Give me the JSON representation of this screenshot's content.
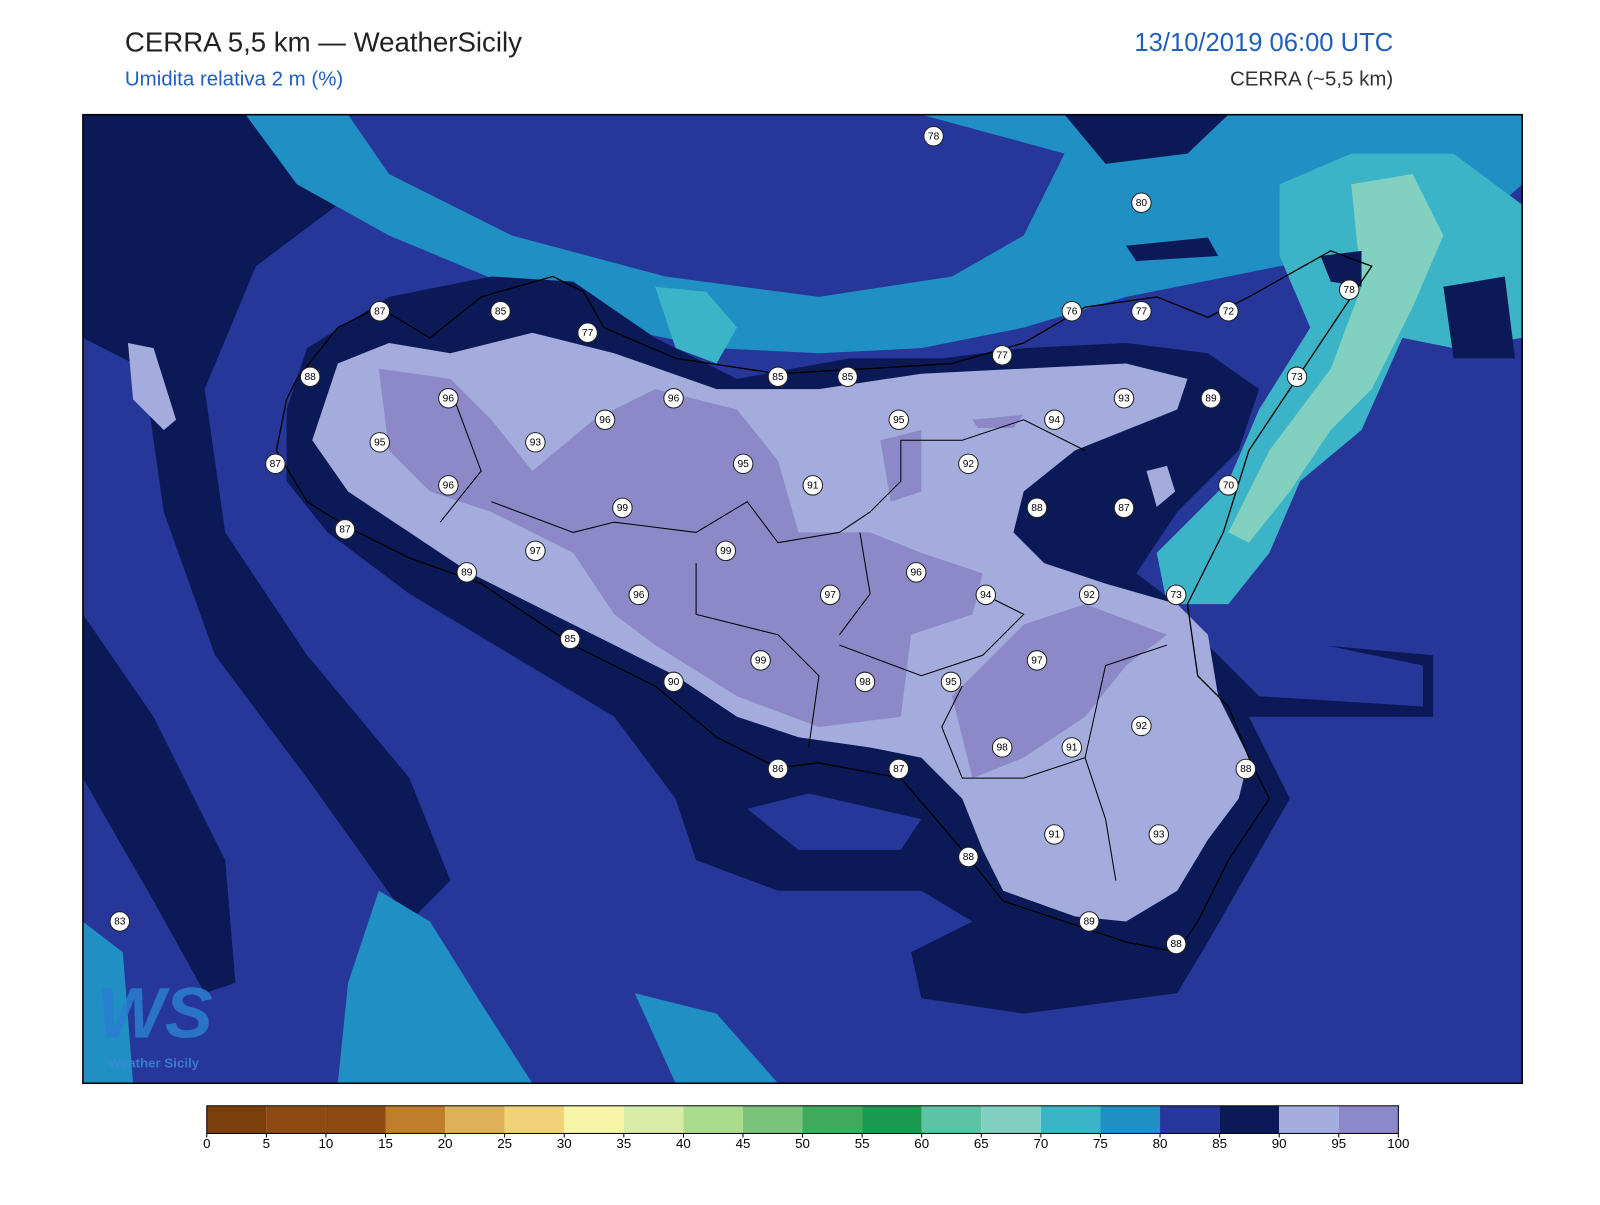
{
  "header": {
    "title": "CERRA 5,5 km — WeatherSicily",
    "subtitle": "Umidita relativa 2 m (%)",
    "datetime": "13/10/2019 06:00 UTC",
    "model": "CERRA (~5,5 km)"
  },
  "logo": {
    "mark": "WS",
    "name": "Weather Sicily"
  },
  "stations": [
    78,
    80,
    87,
    85,
    77,
    76,
    77,
    72,
    78,
    77,
    88,
    85,
    85,
    73,
    96,
    96,
    93,
    89,
    95,
    94,
    96,
    95,
    93,
    87,
    95,
    92,
    91,
    96,
    70,
    99,
    88,
    87,
    87,
    97,
    99,
    89,
    96,
    97,
    96,
    94,
    92,
    73,
    85,
    99,
    97,
    90,
    98,
    95,
    92,
    98,
    91,
    86,
    87,
    88,
    91,
    93,
    88,
    89,
    88,
    83
  ],
  "colorbar": {
    "ticks": [
      0,
      5,
      10,
      15,
      20,
      25,
      30,
      35,
      40,
      45,
      50,
      55,
      60,
      65,
      70,
      75,
      80,
      85,
      90,
      95,
      100
    ],
    "colors": [
      "#7a3f0a",
      "#8c4a12",
      "#8c4a12",
      "#c07e2a",
      "#deb05a",
      "#f0d27a",
      "#f7f5a8",
      "#d8eca7",
      "#abdc8e",
      "#79c37a",
      "#3fa95e",
      "#1a9950",
      "#5ec2a4",
      "#82d0c0",
      "#3bb4c8",
      "#1f8fc4",
      "#263799",
      "#0b1a56",
      "#a3acdc",
      "#8d88c8"
    ]
  }
}
